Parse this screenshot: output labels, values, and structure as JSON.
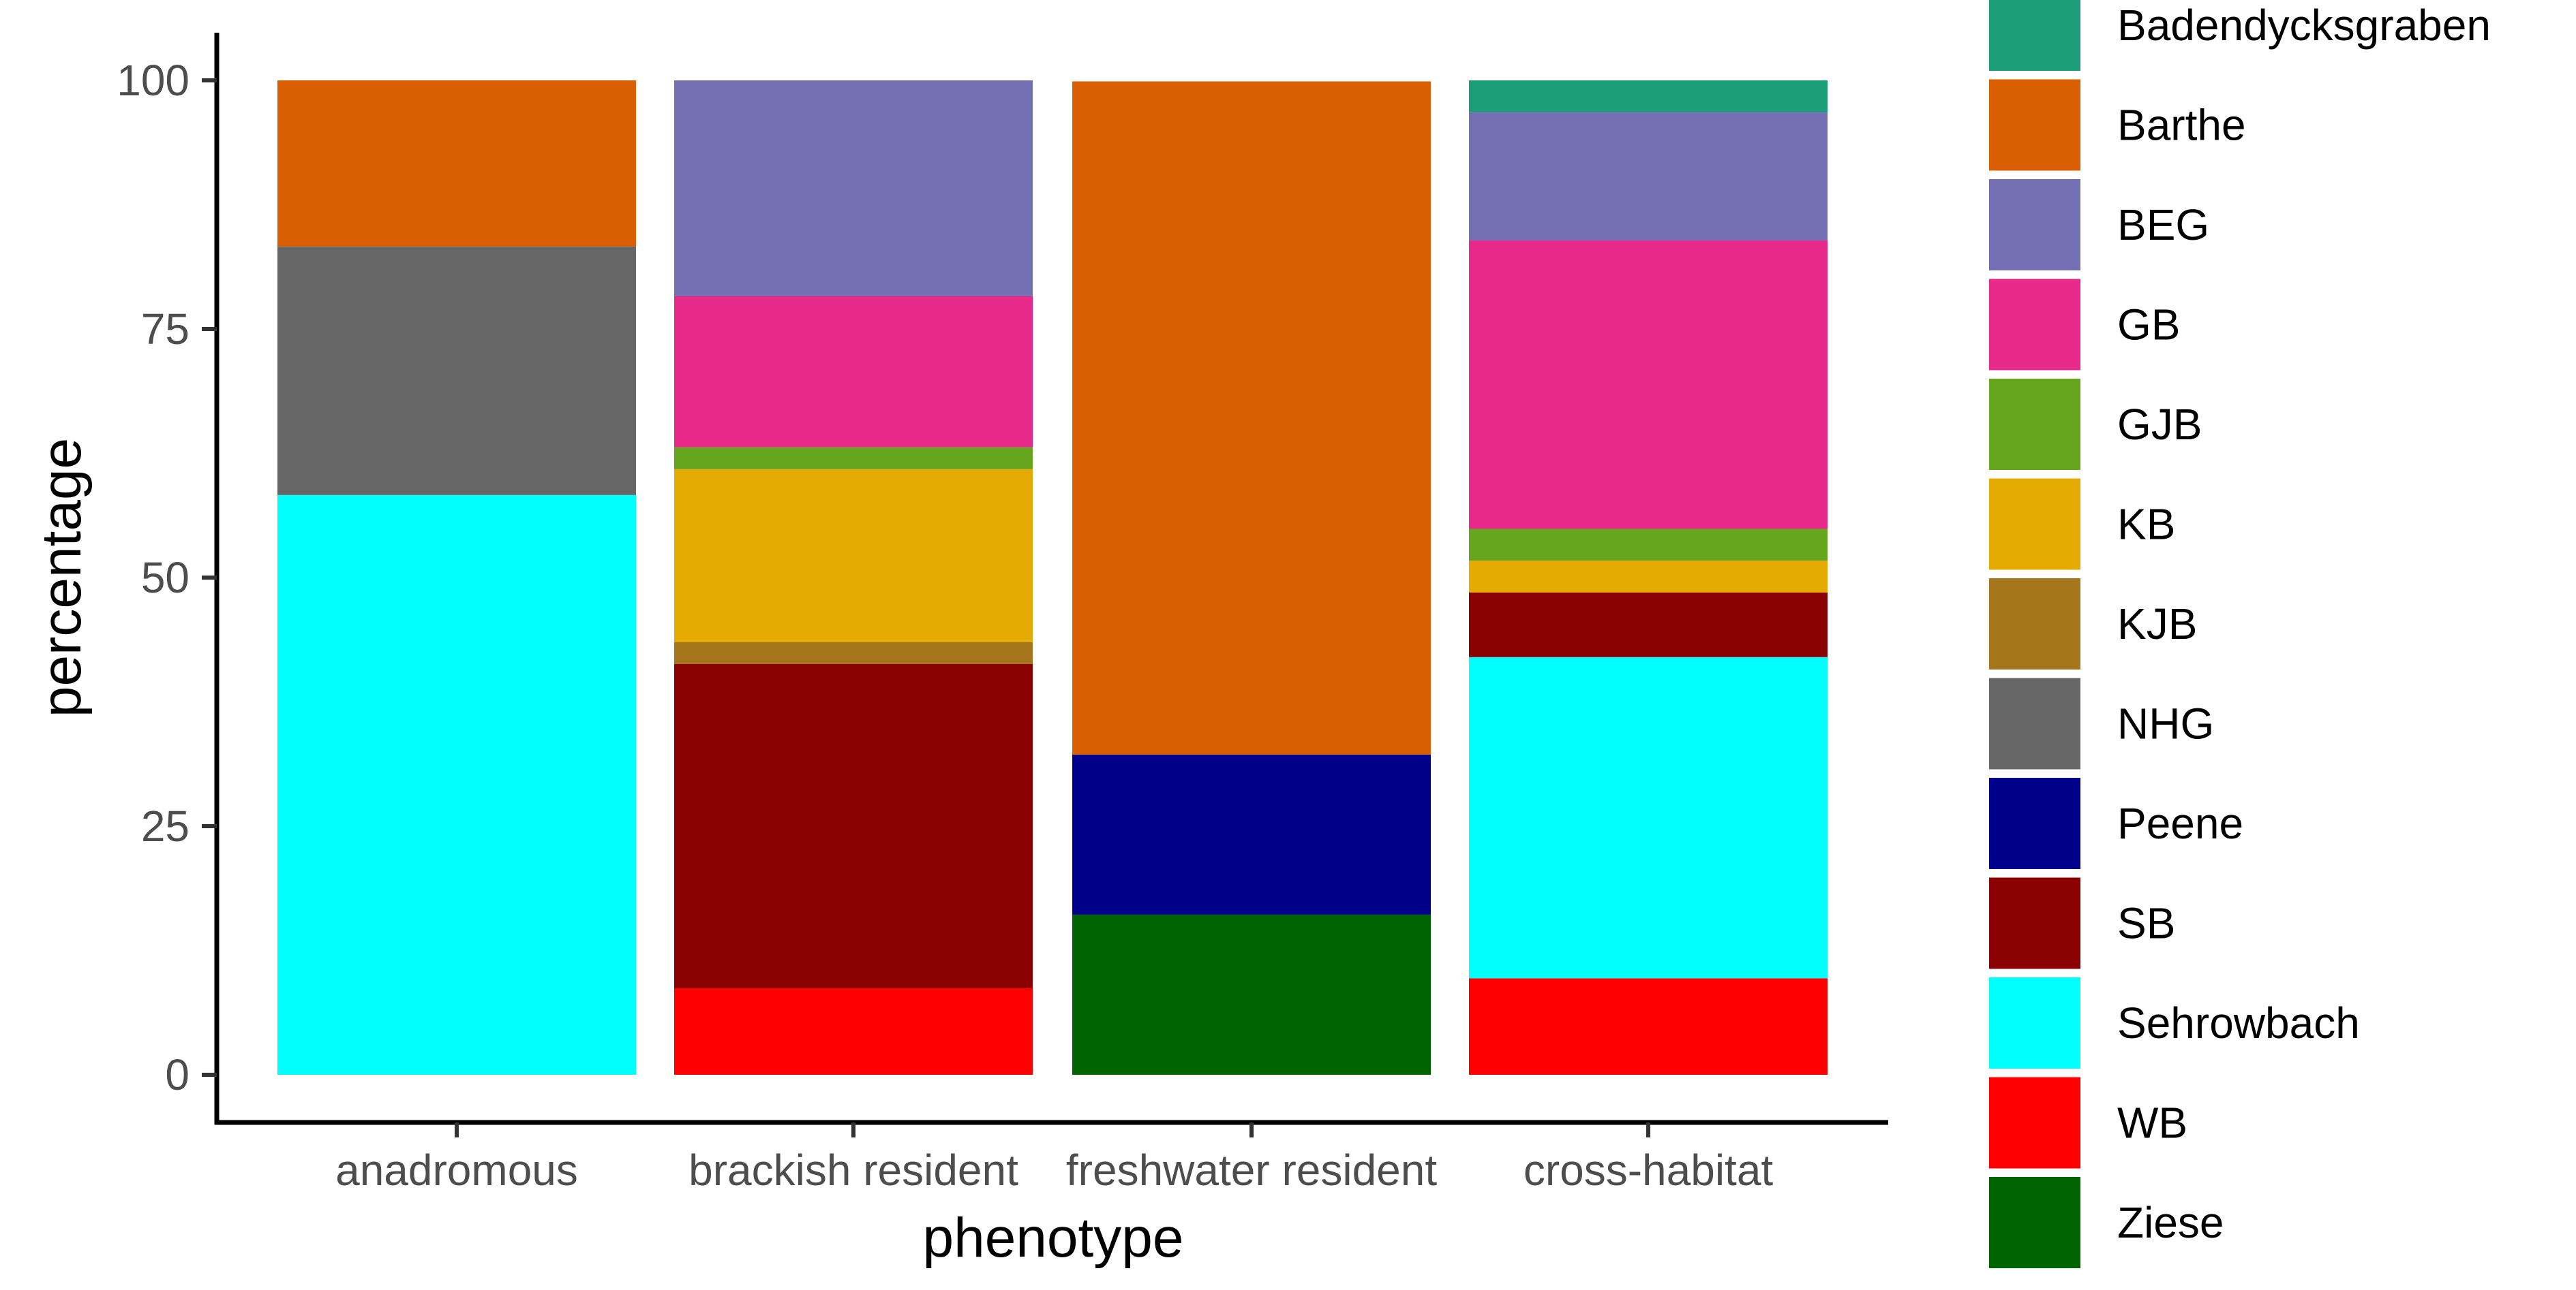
{
  "chart_data": {
    "type": "bar",
    "stacked": true,
    "title": "",
    "xlabel": "phenotype",
    "ylabel": "percentage",
    "ylim": [
      0,
      100
    ],
    "yticks": [
      0,
      25,
      50,
      75,
      100
    ],
    "grid": false,
    "legend_position": "right",
    "categories": [
      "anadromous",
      "brackish resident",
      "freshwater resident",
      "cross-habitat"
    ],
    "series": [
      {
        "name": "Badendycksgraben",
        "color": "#1B9E77",
        "values": [
          0,
          0,
          0,
          3.2
        ]
      },
      {
        "name": "Barthe",
        "color": "#D95F02",
        "values": [
          16.7,
          0,
          67.7,
          0
        ]
      },
      {
        "name": "BEG",
        "color": "#7570B3",
        "values": [
          0,
          21.7,
          0,
          12.9
        ]
      },
      {
        "name": "GB",
        "color": "#E7298A",
        "values": [
          0,
          15.2,
          0,
          29.0
        ]
      },
      {
        "name": "GJB",
        "color": "#66A61E",
        "values": [
          0,
          2.2,
          0,
          3.2
        ]
      },
      {
        "name": "KB",
        "color": "#E6AB02",
        "values": [
          0,
          17.4,
          0,
          3.2
        ]
      },
      {
        "name": "KJB",
        "color": "#A6761D",
        "values": [
          0,
          2.2,
          0,
          0
        ]
      },
      {
        "name": "NHG",
        "color": "#666666",
        "values": [
          25.0,
          0,
          0,
          0
        ]
      },
      {
        "name": "Peene",
        "color": "#00008B",
        "values": [
          0,
          0,
          16.1,
          0
        ]
      },
      {
        "name": "SB",
        "color": "#8B0000",
        "values": [
          0,
          32.6,
          0,
          6.5
        ]
      },
      {
        "name": "Sehrowbach",
        "color": "#00FFFF",
        "values": [
          58.3,
          0,
          0,
          32.3
        ]
      },
      {
        "name": "WB",
        "color": "#FF0000",
        "values": [
          0,
          8.7,
          0,
          9.7
        ]
      },
      {
        "name": "Ziese",
        "color": "#006400",
        "values": [
          0,
          0,
          16.1,
          0
        ]
      }
    ]
  }
}
